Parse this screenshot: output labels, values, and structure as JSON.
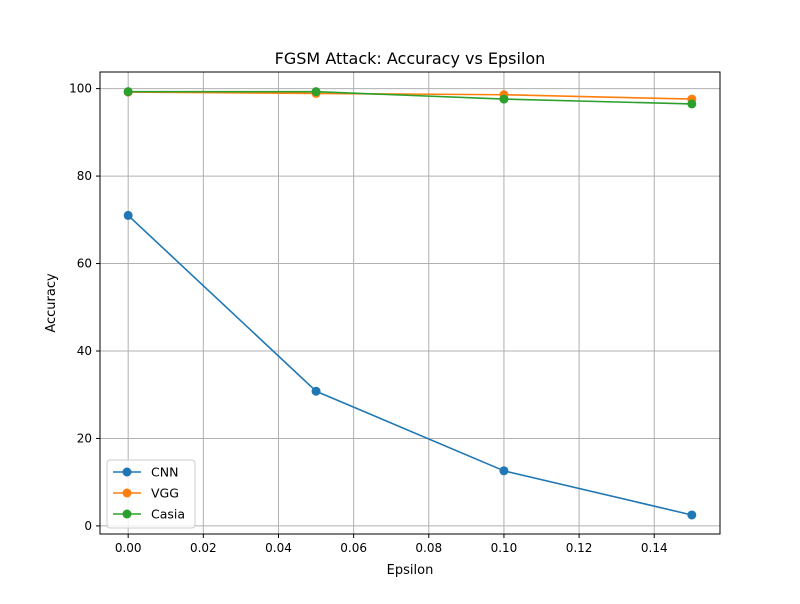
{
  "chart_data": {
    "type": "line",
    "title": "FGSM Attack: Accuracy vs Epsilon",
    "xlabel": "Epsilon",
    "ylabel": "Accuracy",
    "xlim": [
      -0.0075,
      0.1575
    ],
    "ylim": [
      -1.85,
      103.8
    ],
    "xticks": [
      0.0,
      0.02,
      0.04,
      0.06,
      0.08,
      0.1,
      0.12,
      0.14
    ],
    "xtick_labels": [
      "0.00",
      "0.02",
      "0.04",
      "0.06",
      "0.08",
      "0.10",
      "0.12",
      "0.14"
    ],
    "yticks": [
      0,
      20,
      40,
      60,
      80,
      100
    ],
    "ytick_labels": [
      "0",
      "20",
      "40",
      "60",
      "80",
      "100"
    ],
    "grid": true,
    "legend_position": "lower-left",
    "x": [
      0.0,
      0.05,
      0.1,
      0.15
    ],
    "series": [
      {
        "name": "CNN",
        "color": "#1f77b4",
        "values": [
          71.0,
          30.8,
          12.6,
          2.5
        ]
      },
      {
        "name": "VGG",
        "color": "#ff7f0e",
        "values": [
          99.2,
          98.9,
          98.6,
          97.6
        ]
      },
      {
        "name": "Casia",
        "color": "#2ca02c",
        "values": [
          99.3,
          99.3,
          97.6,
          96.5
        ]
      }
    ]
  }
}
